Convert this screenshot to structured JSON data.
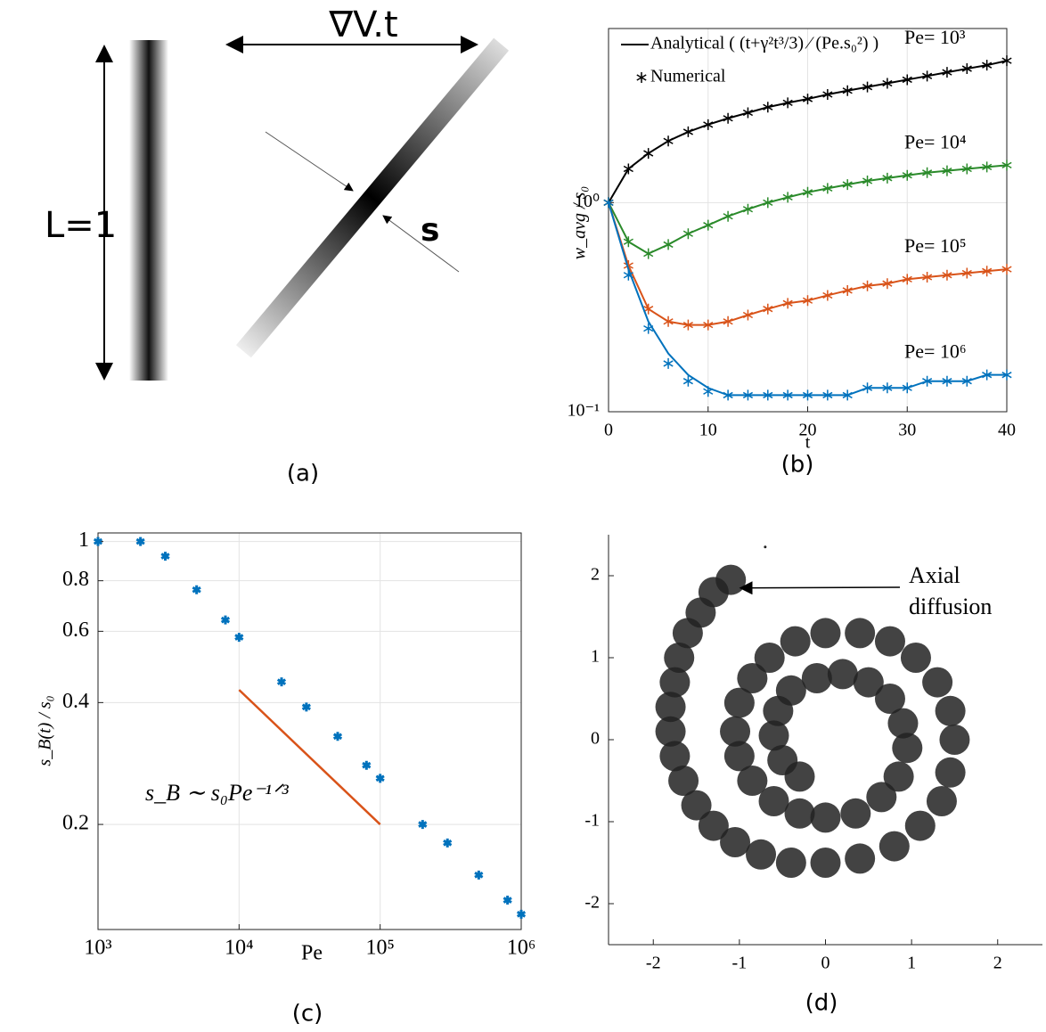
{
  "diagram": {
    "gradient_label": "∇V.t",
    "length_label": "L=1",
    "width_label": "s",
    "caption": "(a)"
  },
  "chart_data": [
    {
      "type": "line",
      "caption": "(b)",
      "xlabel": "t",
      "ylabel": "w_avg / s₀",
      "legend": [
        "Analytical ( (t+γ²t³/3) ⁄ (Pe.s₀²) )",
        "Numerical"
      ],
      "log_y": true,
      "grid": true,
      "xlim": [
        0,
        40
      ],
      "ylim": [
        0.1,
        6.8
      ],
      "xticks": [
        0,
        10,
        20,
        30,
        40
      ],
      "yticks": [
        {
          "value": 0.1,
          "label": "10⁻¹"
        },
        {
          "value": 1,
          "label": "10⁰"
        }
      ],
      "x": [
        0,
        2,
        4,
        6,
        8,
        10,
        12,
        14,
        16,
        18,
        20,
        22,
        24,
        26,
        28,
        30,
        32,
        34,
        36,
        38,
        40
      ],
      "series": [
        {
          "name": "Pe= 10³",
          "color": "#000000",
          "values": [
            1,
            1.45,
            1.72,
            1.97,
            2.18,
            2.36,
            2.53,
            2.69,
            2.86,
            3.0,
            3.13,
            3.29,
            3.43,
            3.57,
            3.72,
            3.87,
            4.03,
            4.2,
            4.37,
            4.54,
            4.77
          ],
          "numerical": [
            1,
            1.45,
            1.72,
            1.97,
            2.18,
            2.36,
            2.53,
            2.69,
            2.86,
            3.0,
            3.13,
            3.29,
            3.43,
            3.57,
            3.72,
            3.87,
            4.03,
            4.2,
            4.37,
            4.54,
            4.77
          ]
        },
        {
          "name": "Pe= 10⁴",
          "color": "#2a8a2a",
          "values": [
            1,
            0.65,
            0.57,
            0.63,
            0.71,
            0.78,
            0.86,
            0.93,
            1.0,
            1.06,
            1.12,
            1.17,
            1.22,
            1.27,
            1.31,
            1.35,
            1.39,
            1.42,
            1.45,
            1.48,
            1.51
          ],
          "numerical": [
            1,
            0.65,
            0.57,
            0.63,
            0.71,
            0.78,
            0.86,
            0.93,
            1.0,
            1.06,
            1.12,
            1.17,
            1.22,
            1.27,
            1.31,
            1.35,
            1.39,
            1.42,
            1.45,
            1.48,
            1.51
          ]
        },
        {
          "name": "Pe= 10⁵",
          "color": "#d95319",
          "values": [
            1,
            0.5,
            0.31,
            0.27,
            0.26,
            0.26,
            0.27,
            0.29,
            0.31,
            0.33,
            0.34,
            0.36,
            0.38,
            0.4,
            0.41,
            0.43,
            0.44,
            0.45,
            0.46,
            0.47,
            0.48
          ],
          "numerical": [
            1,
            0.5,
            0.31,
            0.27,
            0.26,
            0.26,
            0.27,
            0.29,
            0.31,
            0.33,
            0.34,
            0.36,
            0.38,
            0.4,
            0.41,
            0.43,
            0.44,
            0.45,
            0.46,
            0.47,
            0.48
          ]
        },
        {
          "name": "Pe= 10⁶",
          "color": "#0072bd",
          "values": [
            1,
            0.48,
            0.27,
            0.19,
            0.15,
            0.13,
            0.12,
            0.12,
            0.12,
            0.12,
            0.12,
            0.12,
            0.12,
            0.13,
            0.13,
            0.13,
            0.14,
            0.14,
            0.14,
            0.15,
            0.15
          ],
          "numerical": [
            1,
            0.45,
            0.25,
            0.17,
            0.14,
            0.125,
            0.12,
            0.12,
            0.12,
            0.12,
            0.12,
            0.12,
            0.12,
            0.13,
            0.13,
            0.13,
            0.14,
            0.14,
            0.14,
            0.15,
            0.15
          ]
        }
      ]
    },
    {
      "type": "scatter",
      "caption": "(c)",
      "xlabel": "Pe",
      "ylabel": "s_B(t) / s₀",
      "log_x": true,
      "log_y": true,
      "grid": true,
      "xlim": [
        1000,
        1000000
      ],
      "ylim": [
        0.11,
        1.05
      ],
      "xticks": [
        {
          "value": 1000,
          "label": "10³"
        },
        {
          "value": 10000,
          "label": "10⁴"
        },
        {
          "value": 100000,
          "label": "10⁵"
        },
        {
          "value": 1000000,
          "label": "10⁶"
        }
      ],
      "yticks": [
        0.2,
        0.4,
        0.6,
        0.8,
        1
      ],
      "x": [
        1000,
        2000,
        3000,
        5000,
        8000,
        10000,
        20000,
        30000,
        50000,
        80000,
        100000,
        200000,
        300000,
        500000,
        800000,
        1000000
      ],
      "values": [
        1.0,
        1.0,
        0.92,
        0.76,
        0.64,
        0.58,
        0.45,
        0.39,
        0.33,
        0.28,
        0.26,
        0.2,
        0.18,
        0.15,
        0.13,
        0.12
      ],
      "color": "#0072bd",
      "reference": {
        "x": [
          10000,
          100000
        ],
        "values": [
          0.43,
          0.2
        ],
        "color": "#d95319",
        "label": "s_B ∼ s₀Pe⁻¹ᐟ³"
      }
    },
    {
      "type": "scatter",
      "caption": "(d)",
      "xlim": [
        -2.52,
        2.52
      ],
      "ylim": [
        -2.5,
        2.5
      ],
      "xticks": [
        -2,
        -1,
        0,
        1,
        2
      ],
      "yticks": [
        -2,
        -1,
        0,
        1,
        2
      ],
      "color": "#222222",
      "x": [
        -1.1,
        -1.3,
        -1.45,
        -1.6,
        -1.7,
        -1.75,
        -1.8,
        -1.8,
        -1.75,
        -1.65,
        -1.5,
        -1.3,
        -1.05,
        -0.75,
        -0.4,
        0,
        0.4,
        0.8,
        1.1,
        1.35,
        1.45,
        1.5,
        1.45,
        1.3,
        1.05,
        0.75,
        0.4,
        0,
        -0.35,
        -0.65,
        -0.85,
        -1.0,
        -1.05,
        -1.0,
        -0.85,
        -0.6,
        -0.3,
        0,
        0.35,
        0.65,
        0.85,
        0.95,
        0.9,
        0.75,
        0.5,
        0.2,
        -0.1,
        -0.4,
        -0.55,
        -0.6,
        -0.5,
        -0.3,
        -0.7
      ],
      "values": [
        1.95,
        1.8,
        1.55,
        1.3,
        1.0,
        0.7,
        0.4,
        0.1,
        -0.2,
        -0.5,
        -0.8,
        -1.05,
        -1.25,
        -1.4,
        -1.5,
        -1.5,
        -1.45,
        -1.3,
        -1.05,
        -0.75,
        -0.4,
        0,
        0.35,
        0.7,
        1.0,
        1.2,
        1.3,
        1.3,
        1.2,
        1.0,
        0.75,
        0.45,
        0.1,
        -0.2,
        -0.5,
        -0.75,
        -0.9,
        -0.95,
        -0.9,
        -0.7,
        -0.45,
        -0.1,
        0.2,
        0.5,
        0.7,
        0.8,
        0.75,
        0.6,
        0.35,
        0.05,
        -0.25,
        -0.45,
        2.35
      ],
      "annotation": {
        "text": [
          "Axial",
          "diffusion"
        ],
        "x": -1.05,
        "y": 1.85
      }
    }
  ]
}
